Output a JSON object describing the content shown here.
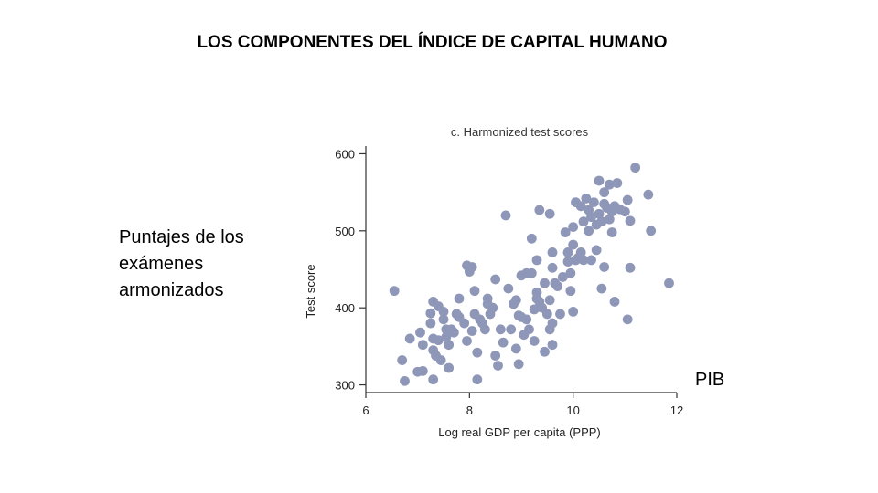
{
  "slide": {
    "title": "LOS COMPONENTES DEL ÍNDICE DE CAPITAL HUMANO",
    "side_label_lines": [
      "Puntajes de los",
      "exámenes",
      "armonizados"
    ],
    "pib_label": "PIB"
  },
  "colors": {
    "point": "#8f97b8",
    "axis": "#333333"
  },
  "chart_data": {
    "type": "scatter",
    "title": "c. Harmonized test scores",
    "xlabel": "Log real GDP per capita (PPP)",
    "ylabel": "Test score",
    "xlim": [
      6,
      12
    ],
    "ylim": [
      290,
      610
    ],
    "xticks": [
      6,
      8,
      10,
      12
    ],
    "yticks": [
      300,
      400,
      500,
      600
    ],
    "grid": false,
    "points": [
      [
        6.55,
        422
      ],
      [
        6.7,
        332
      ],
      [
        6.75,
        305
      ],
      [
        6.85,
        360
      ],
      [
        7.0,
        317
      ],
      [
        7.05,
        368
      ],
      [
        7.1,
        318
      ],
      [
        7.1,
        352
      ],
      [
        7.25,
        393
      ],
      [
        7.25,
        380
      ],
      [
        7.3,
        408
      ],
      [
        7.3,
        360
      ],
      [
        7.3,
        345
      ],
      [
        7.3,
        307
      ],
      [
        7.35,
        338
      ],
      [
        7.4,
        402
      ],
      [
        7.4,
        358
      ],
      [
        7.45,
        332
      ],
      [
        7.5,
        395
      ],
      [
        7.5,
        385
      ],
      [
        7.55,
        372
      ],
      [
        7.55,
        362
      ],
      [
        7.6,
        352
      ],
      [
        7.6,
        322
      ],
      [
        7.65,
        372
      ],
      [
        7.7,
        368
      ],
      [
        7.75,
        392
      ],
      [
        7.8,
        412
      ],
      [
        7.8,
        388
      ],
      [
        7.9,
        380
      ],
      [
        7.95,
        357
      ],
      [
        7.95,
        455
      ],
      [
        8.0,
        447
      ],
      [
        8.05,
        453
      ],
      [
        8.05,
        370
      ],
      [
        8.1,
        422
      ],
      [
        8.1,
        392
      ],
      [
        8.15,
        342
      ],
      [
        8.15,
        307
      ],
      [
        8.2,
        385
      ],
      [
        8.25,
        380
      ],
      [
        8.3,
        372
      ],
      [
        8.35,
        412
      ],
      [
        8.35,
        405
      ],
      [
        8.4,
        392
      ],
      [
        8.45,
        400
      ],
      [
        8.5,
        437
      ],
      [
        8.5,
        338
      ],
      [
        8.55,
        325
      ],
      [
        8.6,
        372
      ],
      [
        8.65,
        355
      ],
      [
        8.7,
        520
      ],
      [
        8.75,
        425
      ],
      [
        8.8,
        372
      ],
      [
        8.85,
        405
      ],
      [
        8.9,
        410
      ],
      [
        8.9,
        347
      ],
      [
        8.95,
        390
      ],
      [
        8.95,
        327
      ],
      [
        9.0,
        442
      ],
      [
        9.0,
        388
      ],
      [
        9.05,
        365
      ],
      [
        9.1,
        445
      ],
      [
        9.1,
        385
      ],
      [
        9.15,
        372
      ],
      [
        9.2,
        490
      ],
      [
        9.2,
        445
      ],
      [
        9.25,
        398
      ],
      [
        9.25,
        357
      ],
      [
        9.3,
        462
      ],
      [
        9.3,
        420
      ],
      [
        9.3,
        412
      ],
      [
        9.35,
        527
      ],
      [
        9.35,
        408
      ],
      [
        9.4,
        400
      ],
      [
        9.45,
        432
      ],
      [
        9.45,
        343
      ],
      [
        9.5,
        392
      ],
      [
        9.55,
        522
      ],
      [
        9.55,
        410
      ],
      [
        9.55,
        372
      ],
      [
        9.6,
        472
      ],
      [
        9.6,
        452
      ],
      [
        9.6,
        380
      ],
      [
        9.6,
        352
      ],
      [
        9.65,
        432
      ],
      [
        9.7,
        428
      ],
      [
        9.75,
        392
      ],
      [
        9.8,
        440
      ],
      [
        9.85,
        498
      ],
      [
        9.9,
        472
      ],
      [
        9.9,
        460
      ],
      [
        9.95,
        445
      ],
      [
        9.95,
        422
      ],
      [
        10.0,
        505
      ],
      [
        10.0,
        482
      ],
      [
        10.0,
        395
      ],
      [
        10.05,
        537
      ],
      [
        10.05,
        462
      ],
      [
        10.1,
        465
      ],
      [
        10.15,
        532
      ],
      [
        10.15,
        472
      ],
      [
        10.2,
        512
      ],
      [
        10.2,
        462
      ],
      [
        10.25,
        542
      ],
      [
        10.3,
        527
      ],
      [
        10.3,
        500
      ],
      [
        10.35,
        518
      ],
      [
        10.35,
        462
      ],
      [
        10.4,
        537
      ],
      [
        10.45,
        508
      ],
      [
        10.45,
        475
      ],
      [
        10.5,
        565
      ],
      [
        10.5,
        522
      ],
      [
        10.55,
        512
      ],
      [
        10.55,
        425
      ],
      [
        10.6,
        550
      ],
      [
        10.6,
        535
      ],
      [
        10.6,
        453
      ],
      [
        10.65,
        530
      ],
      [
        10.7,
        560
      ],
      [
        10.7,
        515
      ],
      [
        10.75,
        525
      ],
      [
        10.75,
        498
      ],
      [
        10.8,
        532
      ],
      [
        10.8,
        408
      ],
      [
        10.85,
        562
      ],
      [
        10.9,
        528
      ],
      [
        11.0,
        525
      ],
      [
        11.05,
        540
      ],
      [
        11.05,
        385
      ],
      [
        11.1,
        513
      ],
      [
        11.1,
        452
      ],
      [
        11.2,
        582
      ],
      [
        11.45,
        547
      ],
      [
        11.5,
        500
      ],
      [
        11.85,
        432
      ]
    ]
  }
}
